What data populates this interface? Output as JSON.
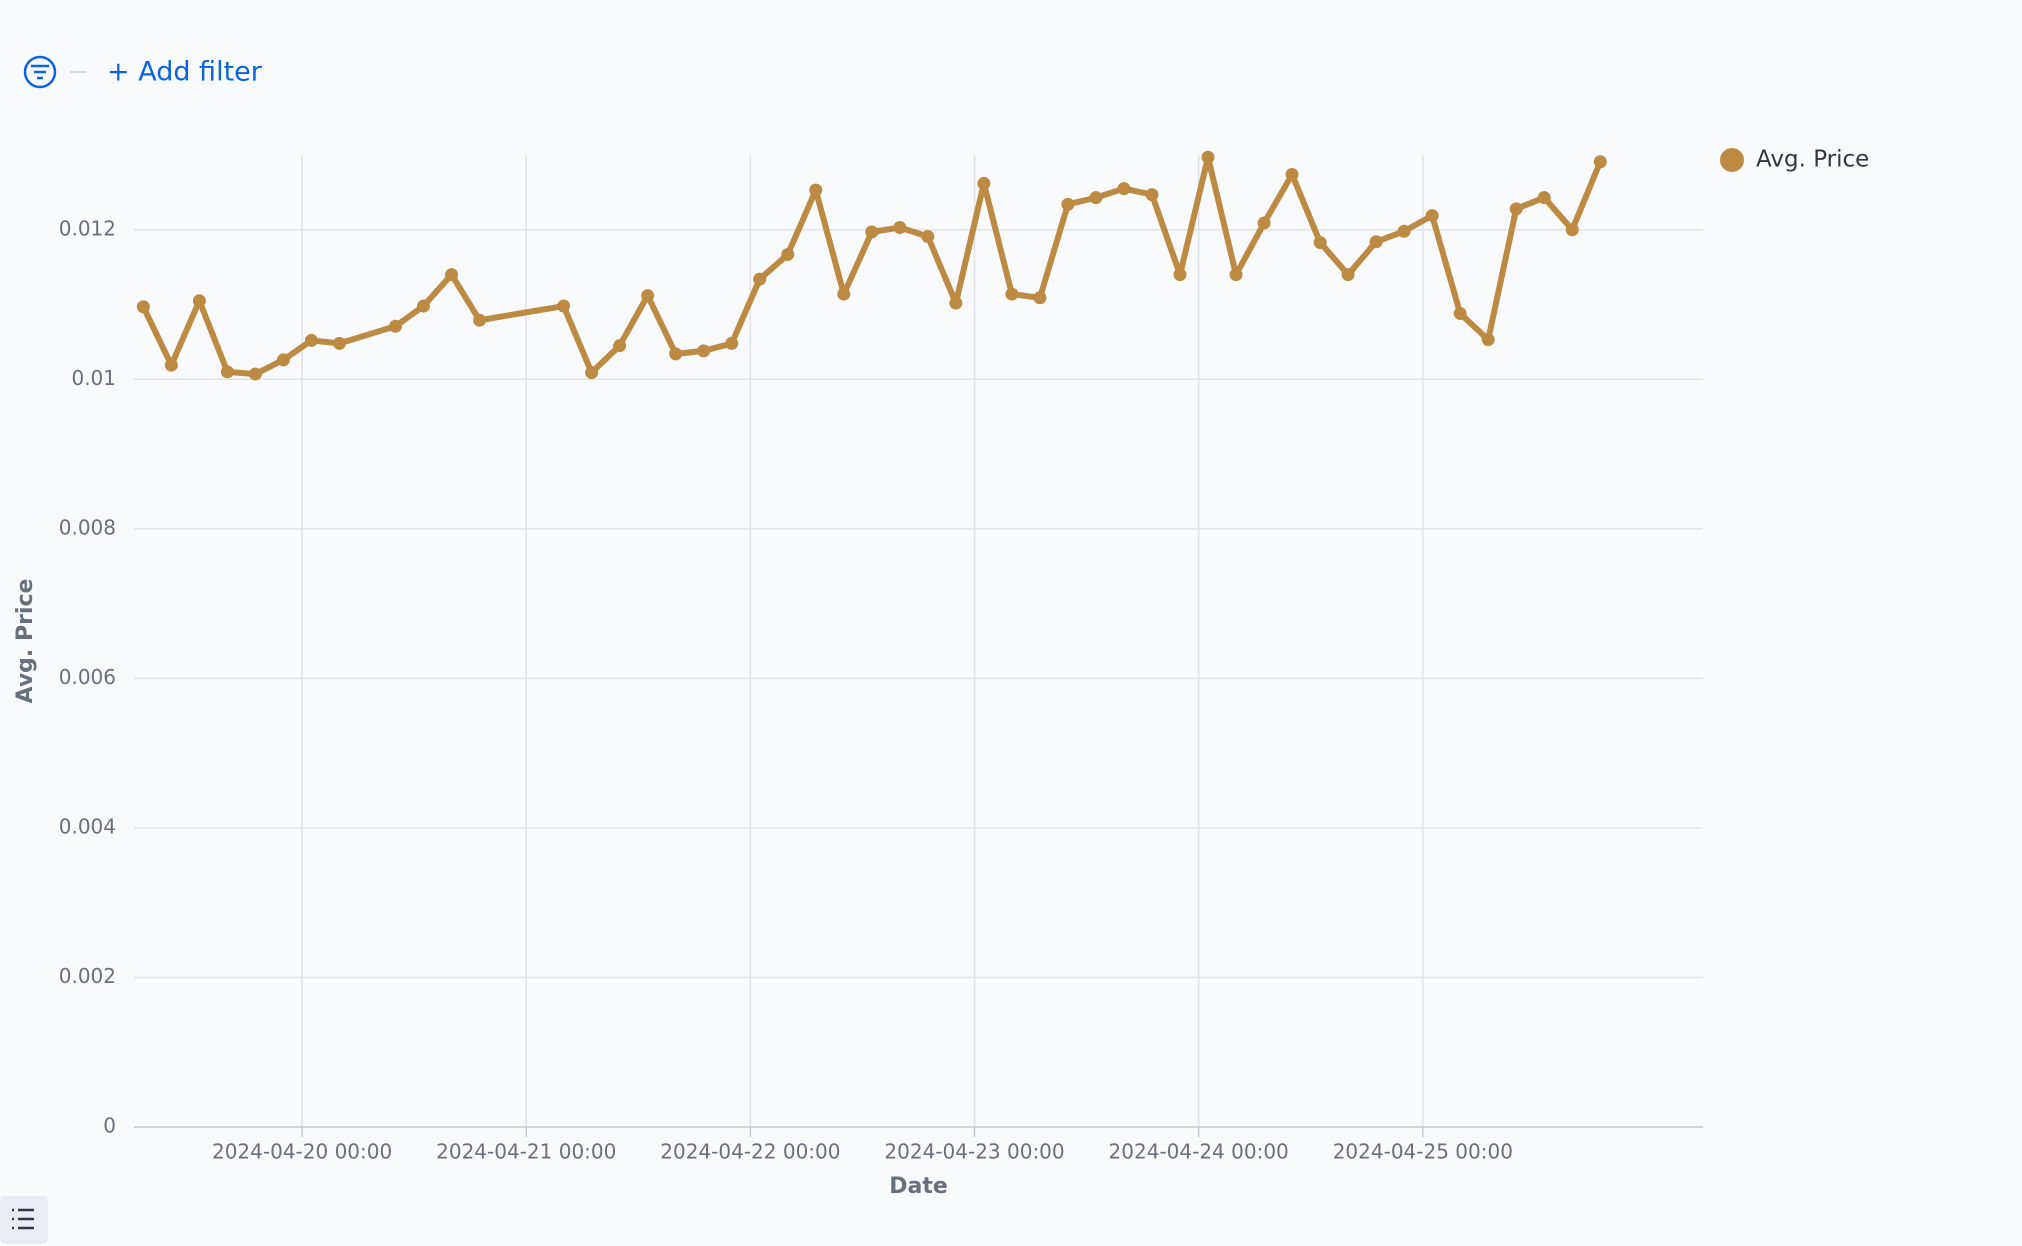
{
  "filter_bar": {
    "add_filter": "+ Add filter"
  },
  "chart_data": {
    "type": "line",
    "x_label": "Date",
    "y_label": "Avg. Price",
    "x": [
      "2024-04-19 07:00",
      "2024-04-19 10:00",
      "2024-04-19 13:00",
      "2024-04-19 16:00",
      "2024-04-19 19:00",
      "2024-04-19 22:00",
      "2024-04-20 01:00",
      "2024-04-20 04:00",
      "2024-04-20 10:00",
      "2024-04-20 13:00",
      "2024-04-20 16:00",
      "2024-04-20 19:00",
      "2024-04-21 04:00",
      "2024-04-21 07:00",
      "2024-04-21 10:00",
      "2024-04-21 13:00",
      "2024-04-21 16:00",
      "2024-04-21 19:00",
      "2024-04-21 22:00",
      "2024-04-22 01:00",
      "2024-04-22 04:00",
      "2024-04-22 07:00",
      "2024-04-22 10:00",
      "2024-04-22 13:00",
      "2024-04-22 16:00",
      "2024-04-22 19:00",
      "2024-04-22 22:00",
      "2024-04-23 01:00",
      "2024-04-23 04:00",
      "2024-04-23 07:00",
      "2024-04-23 10:00",
      "2024-04-23 13:00",
      "2024-04-23 16:00",
      "2024-04-23 19:00",
      "2024-04-23 22:00",
      "2024-04-24 01:00",
      "2024-04-24 04:00",
      "2024-04-24 07:00",
      "2024-04-24 10:00",
      "2024-04-24 13:00",
      "2024-04-24 16:00",
      "2024-04-24 19:00",
      "2024-04-24 22:00",
      "2024-04-25 01:00",
      "2024-04-25 04:00",
      "2024-04-25 07:00",
      "2024-04-25 10:00",
      "2024-04-25 13:00",
      "2024-04-25 16:00",
      "2024-04-25 19:00"
    ],
    "series": [
      {
        "name": "Avg. Price",
        "color": "#bd8a43",
        "values": [
          0.01097,
          0.01019,
          0.01105,
          0.0101,
          0.01007,
          0.01026,
          0.01052,
          0.01048,
          0.01071,
          0.01098,
          0.0114,
          0.01079,
          0.01098,
          0.01009,
          0.01045,
          0.01112,
          0.01034,
          0.01038,
          0.01048,
          0.01134,
          0.01167,
          0.01253,
          0.01114,
          0.01197,
          0.01203,
          0.01191,
          0.01102,
          0.01262,
          0.01114,
          0.01109,
          0.01234,
          0.01243,
          0.01255,
          0.01247,
          0.0114,
          0.01297,
          0.0114,
          0.01209,
          0.01274,
          0.01183,
          0.0114,
          0.01184,
          0.01198,
          0.01219,
          0.01088,
          0.01053,
          0.01228,
          0.01243,
          0.012,
          0.01291
        ]
      }
    ],
    "xlim": [
      "2024-04-19 06:00",
      "2024-04-26 06:00"
    ],
    "xticks": [
      "2024-04-20 00:00",
      "2024-04-21 00:00",
      "2024-04-22 00:00",
      "2024-04-23 00:00",
      "2024-04-24 00:00",
      "2024-04-25 00:00"
    ],
    "ylim": [
      0,
      0.013
    ],
    "yticks": [
      0,
      0.002,
      0.004,
      0.006,
      0.008,
      0.01,
      0.012
    ],
    "grid": true,
    "legend": "top-right"
  }
}
